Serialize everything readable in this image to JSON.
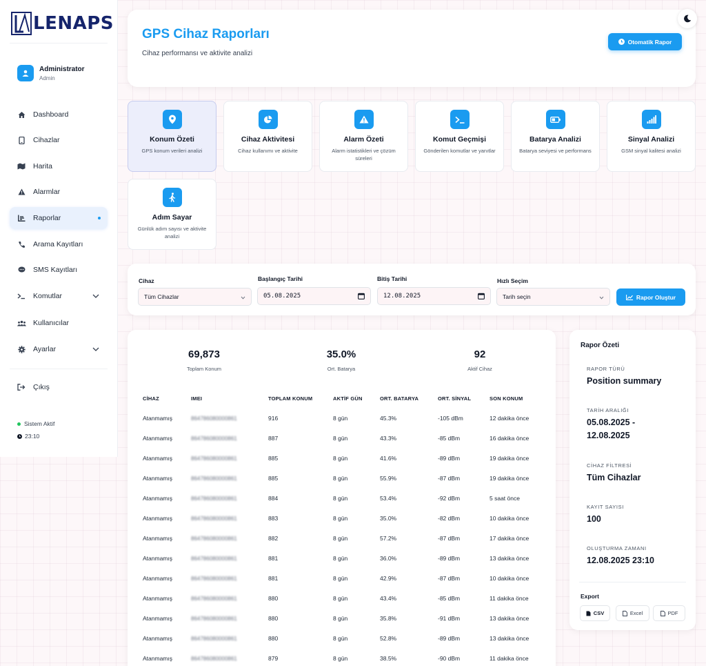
{
  "brand": {
    "logo_text": "LENAPS"
  },
  "user": {
    "name": "Administrator",
    "role": "Admin"
  },
  "nav": [
    {
      "label": "Dashboard",
      "icon": "home-icon"
    },
    {
      "label": "Cihazlar",
      "icon": "phone-icon"
    },
    {
      "label": "Harita",
      "icon": "map-icon"
    },
    {
      "label": "Alarmlar",
      "icon": "alert-icon"
    },
    {
      "label": "Raporlar",
      "icon": "chart-icon",
      "active": true
    },
    {
      "label": "Arama Kayıtları",
      "icon": "call-icon"
    },
    {
      "label": "SMS Kayıtları",
      "icon": "message-icon"
    },
    {
      "label": "Komutlar",
      "icon": "terminal-icon",
      "expandable": true
    },
    {
      "label": "Kullanıcılar",
      "icon": "users-icon"
    },
    {
      "label": "Ayarlar",
      "icon": "gear-icon",
      "expandable": true
    }
  ],
  "logout_label": "Çıkış",
  "system": {
    "status": "Sistem Aktif",
    "time": "23:10"
  },
  "header": {
    "title": "GPS Cihaz Raporları",
    "subtitle": "Cihaz performansı ve aktivite analizi",
    "auto_report_label": "Otomatik Rapor"
  },
  "report_types": [
    {
      "title": "Konum Özeti",
      "desc": "GPS konum verileri analizi",
      "icon": "location-pin-icon",
      "active": true
    },
    {
      "title": "Cihaz Aktivitesi",
      "desc": "Cihaz kullanımı ve aktivite",
      "icon": "pie-chart-icon"
    },
    {
      "title": "Alarm Özeti",
      "desc": "Alarm istatistikleri ve çözüm süreleri",
      "icon": "warning-icon"
    },
    {
      "title": "Komut Geçmişi",
      "desc": "Gönderilen komutlar ve yanıtlar",
      "icon": "terminal-icon"
    },
    {
      "title": "Batarya Analizi",
      "desc": "Batarya seviyesi ve performans",
      "icon": "battery-icon"
    },
    {
      "title": "Sinyal Analizi",
      "desc": "GSM sinyal kalitesi analizi",
      "icon": "signal-icon"
    },
    {
      "title": "Adım Sayar",
      "desc": "Günlük adım sayısı ve aktivite analizi",
      "icon": "walking-icon"
    }
  ],
  "filters": {
    "device_label": "Cihaz",
    "device_value": "Tüm Cihazlar",
    "start_label": "Başlangıç Tarihi",
    "start_value": "05.08.2025",
    "end_label": "Bitiş Tarihi",
    "end_value": "12.08.2025",
    "quick_label": "Hızlı Seçim",
    "quick_value": "Tarih seçin",
    "generate_label": "Rapor Oluştur"
  },
  "stats": [
    {
      "value": "69,873",
      "label": "Toplam Konum"
    },
    {
      "value": "35.0%",
      "label": "Ort. Batarya"
    },
    {
      "value": "92",
      "label": "Aktif Cihaz"
    }
  ],
  "table": {
    "columns": [
      "CİHAZ",
      "IMEI",
      "TOPLAM KONUM",
      "AKTİF GÜN",
      "ORT. BATARYA",
      "ORT. SİNYAL",
      "SON KONUM"
    ],
    "rows": [
      [
        "Atanmamış",
        "864786080000861",
        "916",
        "8 gün",
        "45.3%",
        "-105 dBm",
        "12 dakika önce"
      ],
      [
        "Atanmamış",
        "864786080000861",
        "887",
        "8 gün",
        "43.3%",
        "-85 dBm",
        "16 dakika önce"
      ],
      [
        "Atanmamış",
        "864786080000861",
        "885",
        "8 gün",
        "41.6%",
        "-89 dBm",
        "19 dakika önce"
      ],
      [
        "Atanmamış",
        "864786080000861",
        "885",
        "8 gün",
        "55.9%",
        "-87 dBm",
        "19 dakika önce"
      ],
      [
        "Atanmamış",
        "864786080000861",
        "884",
        "8 gün",
        "53.4%",
        "-92 dBm",
        "5 saat önce"
      ],
      [
        "Atanmamış",
        "864786080000861",
        "883",
        "8 gün",
        "35.0%",
        "-82 dBm",
        "10 dakika önce"
      ],
      [
        "Atanmamış",
        "864786080000861",
        "882",
        "8 gün",
        "57.2%",
        "-87 dBm",
        "17 dakika önce"
      ],
      [
        "Atanmamış",
        "864786080000861",
        "881",
        "8 gün",
        "36.0%",
        "-89 dBm",
        "13 dakika önce"
      ],
      [
        "Atanmamış",
        "864786080000861",
        "881",
        "8 gün",
        "42.9%",
        "-87 dBm",
        "10 dakika önce"
      ],
      [
        "Atanmamış",
        "864786080000861",
        "880",
        "8 gün",
        "43.4%",
        "-85 dBm",
        "11 dakika önce"
      ],
      [
        "Atanmamış",
        "864786080000861",
        "880",
        "8 gün",
        "35.8%",
        "-91 dBm",
        "13 dakika önce"
      ],
      [
        "Atanmamış",
        "864786080000861",
        "880",
        "8 gün",
        "52.8%",
        "-89 dBm",
        "13 dakika önce"
      ],
      [
        "Atanmamış",
        "864786080000861",
        "879",
        "8 gün",
        "38.5%",
        "-90 dBm",
        "11 dakika önce"
      ]
    ]
  },
  "summary": {
    "title": "Rapor Özeti",
    "type_label": "RAPOR TÜRÜ",
    "type_value": "Position summary",
    "range_label": "TARİH ARALIĞI",
    "range_value": "05.08.2025 - 12.08.2025",
    "filter_label": "CİHAZ FİLTRESİ",
    "filter_value": "Tüm Cihazlar",
    "count_label": "KAYIT SAYISI",
    "count_value": "100",
    "created_label": "OLUŞTURMA ZAMANI",
    "created_value": "12.08.2025 23:10",
    "export_title": "Export",
    "export_buttons": [
      "CSV",
      "Excel",
      "PDF"
    ]
  },
  "colors": {
    "accent": "#1a9bf0",
    "brand": "#15246b",
    "status_active": "#22c55e"
  }
}
